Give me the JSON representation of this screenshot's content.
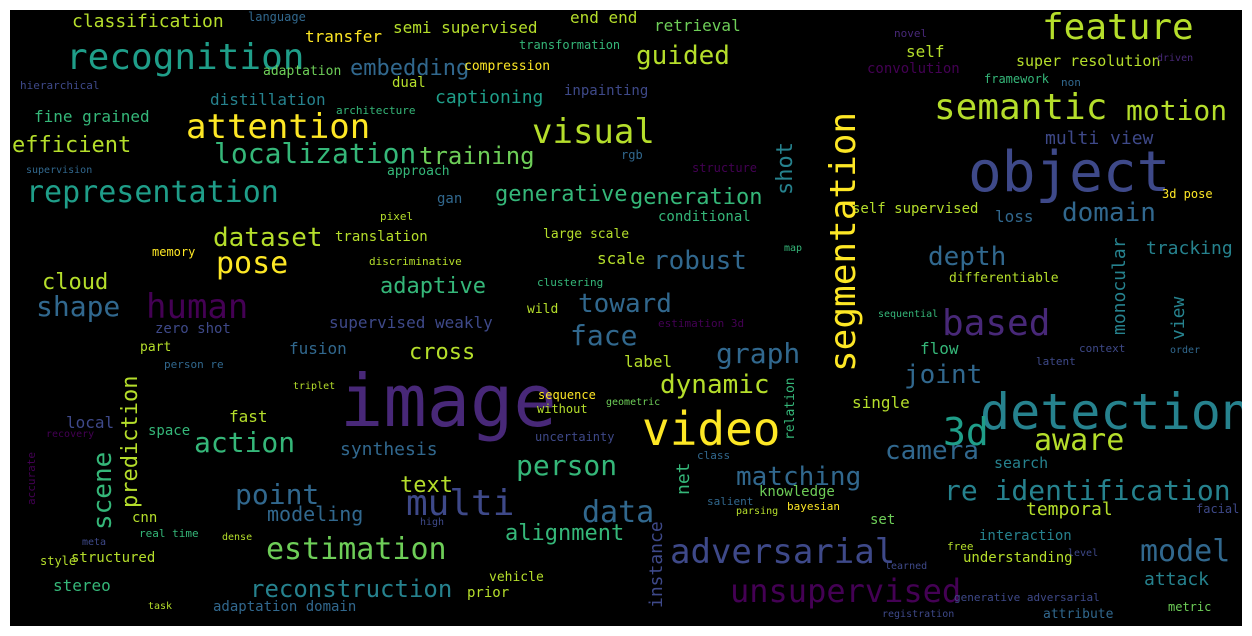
{
  "palette": {
    "background": "#000000",
    "c1": "#fde725",
    "c2": "#b5de2b",
    "c3": "#6ece58",
    "c4": "#35b779",
    "c5": "#1f9e89",
    "c6": "#26828e",
    "c7": "#31688e",
    "c8": "#3e4989",
    "c9": "#482878",
    "c10": "#440154"
  },
  "words": [
    {
      "id": "image",
      "text": "image",
      "color": "#482878"
    },
    {
      "id": "detection",
      "text": "detection",
      "color": "#26828e"
    },
    {
      "id": "object",
      "text": "object",
      "color": "#3e4989"
    },
    {
      "id": "video",
      "text": "video",
      "color": "#fde725"
    },
    {
      "id": "segmentation",
      "text": "segmentation",
      "color": "#fde725"
    },
    {
      "id": "recognition",
      "text": "recognition",
      "color": "#1f9e89"
    },
    {
      "id": "feature",
      "text": "feature",
      "color": "#b5de2b"
    },
    {
      "id": "semantic",
      "text": "semantic",
      "color": "#b5de2b"
    },
    {
      "id": "attention",
      "text": "attention",
      "color": "#fde725"
    },
    {
      "id": "visual",
      "text": "visual",
      "color": "#b5de2b"
    },
    {
      "id": "representation",
      "text": "representation",
      "color": "#1f9e89"
    },
    {
      "id": "human",
      "text": "human",
      "color": "#440154"
    },
    {
      "id": "3d",
      "text": "3d",
      "color": "#1f9e89"
    },
    {
      "id": "based",
      "text": "based",
      "color": "#482878"
    },
    {
      "id": "adversarial",
      "text": "adversarial",
      "color": "#3e4989"
    },
    {
      "id": "unsupervised",
      "text": "unsupervised",
      "color": "#440154"
    },
    {
      "id": "multi",
      "text": "multi",
      "color": "#3e4989"
    },
    {
      "id": "estimation",
      "text": "estimation",
      "color": "#6ece58"
    },
    {
      "id": "re_identification",
      "text": "re identification",
      "color": "#26828e"
    },
    {
      "id": "localization",
      "text": "localization",
      "color": "#35b779"
    },
    {
      "id": "motion",
      "text": "motion",
      "color": "#b5de2b"
    },
    {
      "id": "aware",
      "text": "aware",
      "color": "#b5de2b"
    },
    {
      "id": "model",
      "text": "model",
      "color": "#31688e"
    },
    {
      "id": "reconstruction",
      "text": "reconstruction",
      "color": "#26828e"
    },
    {
      "id": "pose",
      "text": "pose",
      "color": "#fde725"
    },
    {
      "id": "dataset",
      "text": "dataset",
      "color": "#b5de2b"
    },
    {
      "id": "shape",
      "text": "shape",
      "color": "#31688e"
    },
    {
      "id": "action",
      "text": "action",
      "color": "#35b779"
    },
    {
      "id": "point",
      "text": "point",
      "color": "#31688e"
    },
    {
      "id": "person",
      "text": "person",
      "color": "#35b779"
    },
    {
      "id": "matching",
      "text": "matching",
      "color": "#31688e"
    },
    {
      "id": "graph",
      "text": "graph",
      "color": "#31688e"
    },
    {
      "id": "domain",
      "text": "domain",
      "color": "#31688e"
    },
    {
      "id": "depth",
      "text": "depth",
      "color": "#31688e"
    },
    {
      "id": "joint",
      "text": "joint",
      "color": "#31688e"
    },
    {
      "id": "dynamic",
      "text": "dynamic",
      "color": "#b5de2b"
    },
    {
      "id": "robust",
      "text": "robust",
      "color": "#31688e"
    },
    {
      "id": "generation",
      "text": "generation",
      "color": "#35b779"
    },
    {
      "id": "generative",
      "text": "generative",
      "color": "#35b779"
    },
    {
      "id": "training",
      "text": "training",
      "color": "#6ece58"
    },
    {
      "id": "guided",
      "text": "guided",
      "color": "#b5de2b"
    },
    {
      "id": "embedding",
      "text": "embedding",
      "color": "#31688e"
    },
    {
      "id": "face",
      "text": "face",
      "color": "#31688e"
    },
    {
      "id": "toward",
      "text": "toward",
      "color": "#31688e"
    },
    {
      "id": "data",
      "text": "data",
      "color": "#31688e"
    },
    {
      "id": "camera",
      "text": "camera",
      "color": "#31688e"
    },
    {
      "id": "alignment",
      "text": "alignment",
      "color": "#35b779"
    },
    {
      "id": "modeling",
      "text": "modeling",
      "color": "#31688e"
    },
    {
      "id": "text",
      "text": "text",
      "color": "#b5de2b"
    },
    {
      "id": "adaptive",
      "text": "adaptive",
      "color": "#35b779"
    },
    {
      "id": "cross",
      "text": "cross",
      "color": "#b5de2b"
    },
    {
      "id": "cloud",
      "text": "cloud",
      "color": "#b5de2b"
    },
    {
      "id": "efficient",
      "text": "efficient",
      "color": "#b5de2b"
    },
    {
      "id": "classification",
      "text": "classification",
      "color": "#b5de2b"
    },
    {
      "id": "captioning",
      "text": "captioning",
      "color": "#1f9e89"
    },
    {
      "id": "multi_view",
      "text": "multi view",
      "color": "#3e4989"
    },
    {
      "id": "temporal",
      "text": "temporal",
      "color": "#b5de2b"
    },
    {
      "id": "tracking",
      "text": "tracking",
      "color": "#26828e"
    },
    {
      "id": "attack",
      "text": "attack",
      "color": "#26828e"
    },
    {
      "id": "synthesis",
      "text": "synthesis",
      "color": "#31688e"
    },
    {
      "id": "fine_grained",
      "text": "fine grained",
      "color": "#35b779"
    },
    {
      "id": "distillation",
      "text": "distillation",
      "color": "#26828e"
    },
    {
      "id": "semi_supervised",
      "text": "semi supervised",
      "color": "#b5de2b"
    },
    {
      "id": "end_end",
      "text": "end end",
      "color": "#b5de2b"
    },
    {
      "id": "retrieval",
      "text": "retrieval",
      "color": "#6ece58"
    },
    {
      "id": "transfer",
      "text": "transfer",
      "color": "#fde725"
    },
    {
      "id": "supervised_weakly",
      "text": "supervised weakly",
      "color": "#3e4989"
    },
    {
      "id": "super_resolution",
      "text": "super resolution",
      "color": "#b5de2b"
    },
    {
      "id": "loss",
      "text": "loss",
      "color": "#31688e"
    },
    {
      "id": "self",
      "text": "self",
      "color": "#b5de2b"
    },
    {
      "id": "flow",
      "text": "flow",
      "color": "#35b779"
    },
    {
      "id": "single",
      "text": "single",
      "color": "#b5de2b"
    },
    {
      "id": "fast",
      "text": "fast",
      "color": "#b5de2b"
    },
    {
      "id": "fusion",
      "text": "fusion",
      "color": "#31688e"
    },
    {
      "id": "local",
      "text": "local",
      "color": "#3e4989"
    },
    {
      "id": "scale",
      "text": "scale",
      "color": "#b5de2b"
    },
    {
      "id": "label",
      "text": "label",
      "color": "#b5de2b"
    },
    {
      "id": "search",
      "text": "search",
      "color": "#26828e"
    },
    {
      "id": "interaction",
      "text": "interaction",
      "color": "#26828e"
    },
    {
      "id": "understanding",
      "text": "understanding",
      "color": "#b5de2b"
    },
    {
      "id": "stereo",
      "text": "stereo",
      "color": "#35b779"
    },
    {
      "id": "structured",
      "text": "structured",
      "color": "#b5de2b"
    },
    {
      "id": "adaptation_domain",
      "text": "adaptation domain",
      "color": "#31688e"
    },
    {
      "id": "set",
      "text": "set",
      "color": "#6ece58"
    },
    {
      "id": "knowledge",
      "text": "knowledge",
      "color": "#6ece58"
    },
    {
      "id": "cnn",
      "text": "cnn",
      "color": "#b5de2b"
    },
    {
      "id": "space",
      "text": "space",
      "color": "#35b779"
    },
    {
      "id": "zero_shot",
      "text": "zero shot",
      "color": "#3e4989"
    },
    {
      "id": "part",
      "text": "part",
      "color": "#b5de2b"
    },
    {
      "id": "prior",
      "text": "prior",
      "color": "#b5de2b"
    },
    {
      "id": "vehicle",
      "text": "vehicle",
      "color": "#b5de2b"
    },
    {
      "id": "conditional",
      "text": "conditional",
      "color": "#35b779"
    },
    {
      "id": "self_supervised",
      "text": "self supervised",
      "color": "#b5de2b"
    },
    {
      "id": "large_scale",
      "text": "large scale",
      "color": "#b5de2b"
    },
    {
      "id": "translation",
      "text": "translation",
      "color": "#b5de2b"
    },
    {
      "id": "gan",
      "text": "gan",
      "color": "#31688e"
    },
    {
      "id": "approach",
      "text": "approach",
      "color": "#35b779"
    },
    {
      "id": "compression",
      "text": "compression",
      "color": "#fde725"
    },
    {
      "id": "adaptation",
      "text": "adaptation",
      "color": "#6ece58"
    },
    {
      "id": "dual",
      "text": "dual",
      "color": "#b5de2b"
    },
    {
      "id": "inpainting",
      "text": "inpainting",
      "color": "#3e4989"
    },
    {
      "id": "transformation",
      "text": "transformation",
      "color": "#35b779"
    },
    {
      "id": "language",
      "text": "language",
      "color": "#31688e"
    },
    {
      "id": "architecture",
      "text": "architecture",
      "color": "#35b779"
    },
    {
      "id": "convolution",
      "text": "convolution",
      "color": "#440154"
    },
    {
      "id": "framework",
      "text": "framework",
      "color": "#35b779"
    },
    {
      "id": "non",
      "text": "non",
      "color": "#31688e"
    },
    {
      "id": "driven",
      "text": "driven",
      "color": "#482878"
    },
    {
      "id": "novel",
      "text": "novel",
      "color": "#482878"
    },
    {
      "id": "hierarchical",
      "text": "hierarchical",
      "color": "#3e4989"
    },
    {
      "id": "supervision",
      "text": "supervision",
      "color": "#31688e"
    },
    {
      "id": "rgb",
      "text": "rgb",
      "color": "#31688e"
    },
    {
      "id": "structure",
      "text": "structure",
      "color": "#440154"
    },
    {
      "id": "3d_pose",
      "text": "3d pose",
      "color": "#fde725"
    },
    {
      "id": "pixel",
      "text": "pixel",
      "color": "#b5de2b"
    },
    {
      "id": "memory",
      "text": "memory",
      "color": "#fde725"
    },
    {
      "id": "discriminative",
      "text": "discriminative",
      "color": "#b5de2b"
    },
    {
      "id": "clustering",
      "text": "clustering",
      "color": "#35b779"
    },
    {
      "id": "map",
      "text": "map",
      "color": "#35b779"
    },
    {
      "id": "differentiable",
      "text": "differentiable",
      "color": "#b5de2b"
    },
    {
      "id": "wild",
      "text": "wild",
      "color": "#b5de2b"
    },
    {
      "id": "estimation_3d",
      "text": "estimation 3d",
      "color": "#440154"
    },
    {
      "id": "sequential",
      "text": "sequential",
      "color": "#35b779"
    },
    {
      "id": "context",
      "text": "context",
      "color": "#3e4989"
    },
    {
      "id": "order",
      "text": "order",
      "color": "#31688e"
    },
    {
      "id": "latent",
      "text": "latent",
      "color": "#3e4989"
    },
    {
      "id": "person_re",
      "text": "person re",
      "color": "#31688e"
    },
    {
      "id": "triplet",
      "text": "triplet",
      "color": "#b5de2b"
    },
    {
      "id": "sequence",
      "text": "sequence",
      "color": "#fde725"
    },
    {
      "id": "without",
      "text": "without",
      "color": "#b5de2b"
    },
    {
      "id": "geometric",
      "text": "geometric",
      "color": "#6ece58"
    },
    {
      "id": "relation",
      "text": "relation",
      "color": "#35b779"
    },
    {
      "id": "recovery",
      "text": "recovery",
      "color": "#440154"
    },
    {
      "id": "accurate",
      "text": "accurate",
      "color": "#440154"
    },
    {
      "id": "uncertainty",
      "text": "uncertainty",
      "color": "#3e4989"
    },
    {
      "id": "class",
      "text": "class",
      "color": "#31688e"
    },
    {
      "id": "salient",
      "text": "salient",
      "color": "#31688e"
    },
    {
      "id": "bayesian",
      "text": "bayesian",
      "color": "#fde725"
    },
    {
      "id": "parsing",
      "text": "parsing",
      "color": "#b5de2b"
    },
    {
      "id": "high",
      "text": "high",
      "color": "#3e4989"
    },
    {
      "id": "real_time",
      "text": "real time",
      "color": "#35b779"
    },
    {
      "id": "dense",
      "text": "dense",
      "color": "#b5de2b"
    },
    {
      "id": "meta",
      "text": "meta",
      "color": "#3e4989"
    },
    {
      "id": "style",
      "text": "style",
      "color": "#b5de2b"
    },
    {
      "id": "task",
      "text": "task",
      "color": "#b5de2b"
    },
    {
      "id": "facial",
      "text": "facial",
      "color": "#3e4989"
    },
    {
      "id": "free",
      "text": "free",
      "color": "#b5de2b"
    },
    {
      "id": "level",
      "text": "level",
      "color": "#3e4989"
    },
    {
      "id": "learned",
      "text": "learned",
      "color": "#3e4989"
    },
    {
      "id": "generative_adversarial",
      "text": "generative adversarial",
      "color": "#3e4989"
    },
    {
      "id": "metric",
      "text": "metric",
      "color": "#6ece58"
    },
    {
      "id": "registration",
      "text": "registration",
      "color": "#3e4989"
    },
    {
      "id": "attribute",
      "text": "attribute",
      "color": "#31688e"
    },
    {
      "id": "monocular",
      "text": "monocular",
      "color": "#26828e"
    },
    {
      "id": "view",
      "text": "view",
      "color": "#26828e"
    },
    {
      "id": "shot",
      "text": "shot",
      "color": "#26828e"
    },
    {
      "id": "net",
      "text": "net",
      "color": "#35b779"
    },
    {
      "id": "instance",
      "text": "instance",
      "color": "#3e4989"
    },
    {
      "id": "prediction",
      "text": "prediction",
      "color": "#b5de2b"
    },
    {
      "id": "scene",
      "text": "scene",
      "color": "#35b779"
    }
  ]
}
